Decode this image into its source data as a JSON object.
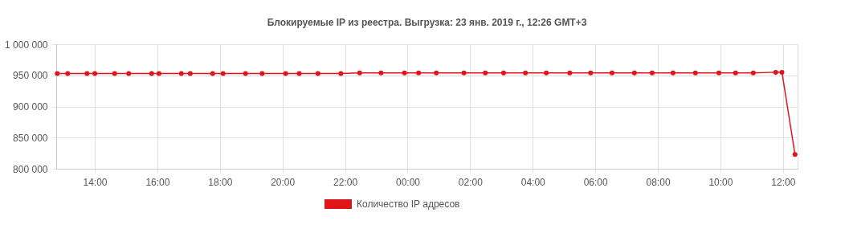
{
  "chart_data": {
    "type": "line",
    "title": "Блокируемые IP из реестра. Выгрузка: 23 янв. 2019 г., 12:26 GMT+3",
    "x": [
      "2019-01-22T12:48",
      "2019-01-22T13:08",
      "2019-01-22T13:45",
      "2019-01-22T14:00",
      "2019-01-22T14:38",
      "2019-01-22T15:05",
      "2019-01-22T15:49",
      "2019-01-22T16:03",
      "2019-01-22T16:46",
      "2019-01-22T17:03",
      "2019-01-22T17:46",
      "2019-01-22T18:06",
      "2019-01-22T18:49",
      "2019-01-22T19:21",
      "2019-01-22T20:06",
      "2019-01-22T20:32",
      "2019-01-22T21:08",
      "2019-01-22T21:52",
      "2019-01-22T22:28",
      "2019-01-22T23:09",
      "2019-01-22T23:54",
      "2019-01-23T00:21",
      "2019-01-23T00:55",
      "2019-01-23T01:48",
      "2019-01-23T02:29",
      "2019-01-23T03:04",
      "2019-01-23T03:46",
      "2019-01-23T04:26",
      "2019-01-23T05:11",
      "2019-01-23T05:51",
      "2019-01-23T06:32",
      "2019-01-23T07:15",
      "2019-01-23T07:49",
      "2019-01-23T08:29",
      "2019-01-23T09:12",
      "2019-01-23T09:57",
      "2019-01-23T10:29",
      "2019-01-23T11:03",
      "2019-01-23T11:46",
      "2019-01-23T11:58",
      "2019-01-23T12:23"
    ],
    "series": [
      {
        "name": "Количество IP адресов",
        "color": "#e0151a",
        "values": [
          953000,
          953000,
          953000,
          953000,
          953000,
          953000,
          953000,
          953000,
          953000,
          953000,
          953000,
          953000,
          953000,
          953000,
          953000,
          953000,
          953000,
          953000,
          954000,
          954000,
          954000,
          954000,
          954000,
          954000,
          954000,
          954000,
          954000,
          954000,
          954000,
          954000,
          954000,
          954000,
          954000,
          954000,
          954000,
          954000,
          954000,
          954000,
          955000,
          955000,
          823000
        ]
      }
    ],
    "xlim": [
      "2019-01-22T12:46",
      "2019-01-23T12:28"
    ],
    "xticks": [
      {
        "value": "2019-01-22T14:00",
        "label": "14:00"
      },
      {
        "value": "2019-01-22T16:00",
        "label": "16:00"
      },
      {
        "value": "2019-01-22T18:00",
        "label": "18:00"
      },
      {
        "value": "2019-01-22T20:00",
        "label": "20:00"
      },
      {
        "value": "2019-01-22T22:00",
        "label": "22:00"
      },
      {
        "value": "2019-01-23T00:00",
        "label": "00:00"
      },
      {
        "value": "2019-01-23T02:00",
        "label": "02:00"
      },
      {
        "value": "2019-01-23T04:00",
        "label": "04:00"
      },
      {
        "value": "2019-01-23T06:00",
        "label": "06:00"
      },
      {
        "value": "2019-01-23T08:00",
        "label": "08:00"
      },
      {
        "value": "2019-01-23T10:00",
        "label": "10:00"
      },
      {
        "value": "2019-01-23T12:00",
        "label": "12:00"
      }
    ],
    "ylim": [
      800000,
      1000000
    ],
    "yticks": [
      {
        "value": 800000,
        "label": "800 000"
      },
      {
        "value": 850000,
        "label": "850 000"
      },
      {
        "value": 900000,
        "label": "900 000"
      },
      {
        "value": 950000,
        "label": "950 000"
      },
      {
        "value": 1000000,
        "label": "1 000 000"
      }
    ],
    "grid": true,
    "legend": "bottom",
    "marker": "circle",
    "line_style": "solid"
  }
}
